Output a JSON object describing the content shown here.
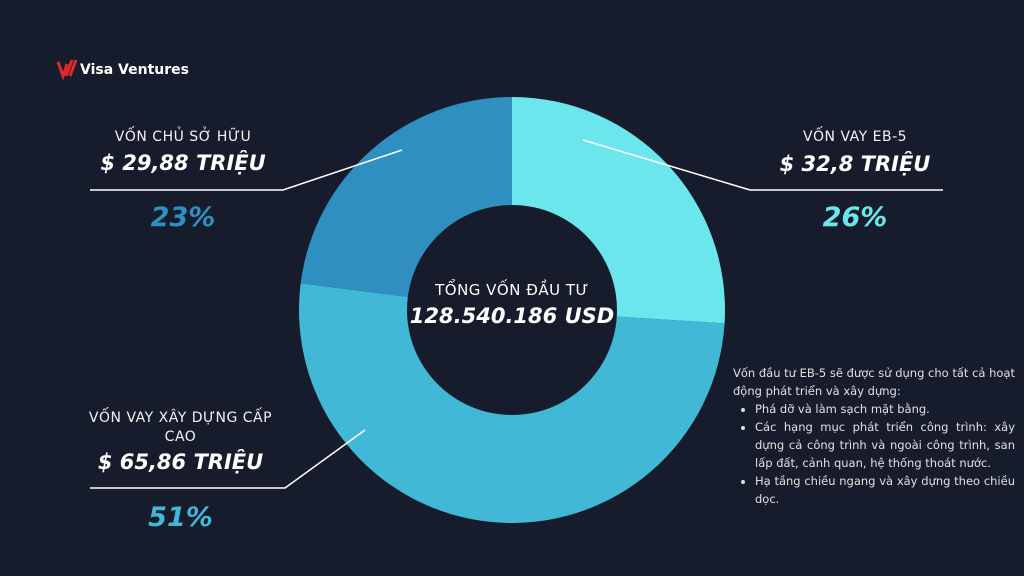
{
  "brand": "Visa Ventures",
  "chart_data": {
    "type": "donut",
    "categories": [
      "VỐN VAY EB-5",
      "VỐN VAY XÂY DỰNG CẤP CAO",
      "VỐN CHỦ SỞ HỮU"
    ],
    "values": [
      26,
      51,
      23
    ],
    "value_labels": [
      "26%",
      "51%",
      "23%"
    ],
    "amount_labels": [
      "$ 32,8 TRIỆU",
      "$ 65,86 TRIỆU",
      "$ 29,88 TRIỆU"
    ],
    "colors": [
      "#6ae6ec",
      "#41b8d6",
      "#2e8fc0"
    ],
    "center_title": "TỔNG VỐN ĐẦU TƯ",
    "center_value": "128.540.186 USD"
  },
  "note": {
    "intro": "Vốn đầu tư EB-5 sẽ được sử dụng cho tất cả hoạt động phát triển và xây dựng:",
    "bullets": [
      "Phá dỡ và làm sạch mặt bằng.",
      "Các hạng mục phát triển công trình: xây dựng cả công trình và ngoài công trình, san lấp đất, cảnh quan, hệ thống thoát nước.",
      "Hạ tầng chiều ngang và xây dựng theo chiều dọc."
    ]
  }
}
